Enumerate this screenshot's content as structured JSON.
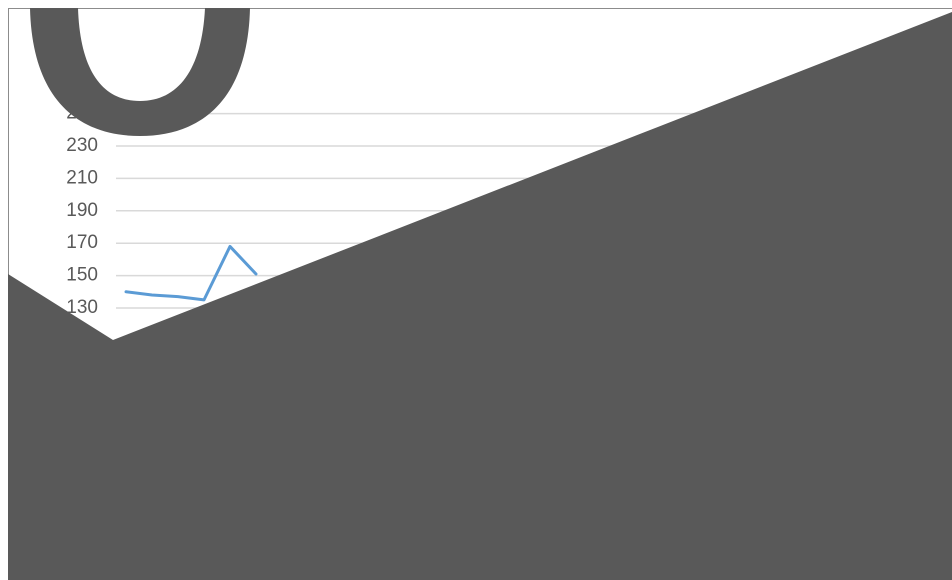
{
  "chart_data": {
    "type": "line",
    "categories": [
      null,
      null,
      null,
      null,
      null,
      null
    ],
    "series": [
      {
        "color": "#5b9bd5",
        "values": [
          140,
          138,
          137,
          135,
          168,
          151
        ]
      }
    ],
    "ylim": [
      130,
      250
    ],
    "yticks": [
      130,
      150,
      170,
      190,
      210,
      230,
      250
    ],
    "grid": true
  }
}
